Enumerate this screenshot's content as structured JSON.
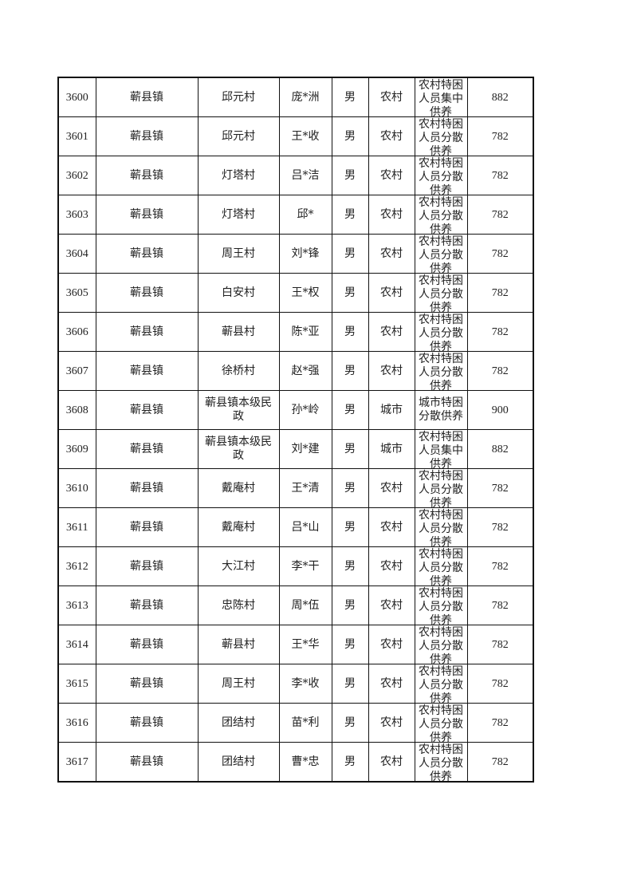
{
  "rows": [
    [
      "3600",
      "蕲县镇",
      "邱元村",
      "庞*洲",
      "男",
      "农村",
      "农村特困人员集中供养",
      "882"
    ],
    [
      "3601",
      "蕲县镇",
      "邱元村",
      "王*收",
      "男",
      "农村",
      "农村特困人员分散供养",
      "782"
    ],
    [
      "3602",
      "蕲县镇",
      "灯塔村",
      "吕*洁",
      "男",
      "农村",
      "农村特困人员分散供养",
      "782"
    ],
    [
      "3603",
      "蕲县镇",
      "灯塔村",
      "邱*",
      "男",
      "农村",
      "农村特困人员分散供养",
      "782"
    ],
    [
      "3604",
      "蕲县镇",
      "周王村",
      "刘*锋",
      "男",
      "农村",
      "农村特困人员分散供养",
      "782"
    ],
    [
      "3605",
      "蕲县镇",
      "白安村",
      "王*权",
      "男",
      "农村",
      "农村特困人员分散供养",
      "782"
    ],
    [
      "3606",
      "蕲县镇",
      "蕲县村",
      "陈*亚",
      "男",
      "农村",
      "农村特困人员分散供养",
      "782"
    ],
    [
      "3607",
      "蕲县镇",
      "徐桥村",
      "赵*强",
      "男",
      "农村",
      "农村特困人员分散供养",
      "782"
    ],
    [
      "3608",
      "蕲县镇",
      "蕲县镇本级民政",
      "孙*岭",
      "男",
      "城市",
      "城市特困分散供养",
      "900"
    ],
    [
      "3609",
      "蕲县镇",
      "蕲县镇本级民政",
      "刘*建",
      "男",
      "城市",
      "农村特困人员集中供养",
      "882"
    ],
    [
      "3610",
      "蕲县镇",
      "戴庵村",
      "王*清",
      "男",
      "农村",
      "农村特困人员分散供养",
      "782"
    ],
    [
      "3611",
      "蕲县镇",
      "戴庵村",
      "吕*山",
      "男",
      "农村",
      "农村特困人员分散供养",
      "782"
    ],
    [
      "3612",
      "蕲县镇",
      "大江村",
      "李*干",
      "男",
      "农村",
      "农村特困人员分散供养",
      "782"
    ],
    [
      "3613",
      "蕲县镇",
      "忠陈村",
      "周*伍",
      "男",
      "农村",
      "农村特困人员分散供养",
      "782"
    ],
    [
      "3614",
      "蕲县镇",
      "蕲县村",
      "王*华",
      "男",
      "农村",
      "农村特困人员分散供养",
      "782"
    ],
    [
      "3615",
      "蕲县镇",
      "周王村",
      "李*收",
      "男",
      "农村",
      "农村特困人员分散供养",
      "782"
    ],
    [
      "3616",
      "蕲县镇",
      "团结村",
      "苗*利",
      "男",
      "农村",
      "农村特困人员分散供养",
      "782"
    ],
    [
      "3617",
      "蕲县镇",
      "团结村",
      "曹*忠",
      "男",
      "农村",
      "农村特困人员分散供养",
      "782"
    ]
  ]
}
